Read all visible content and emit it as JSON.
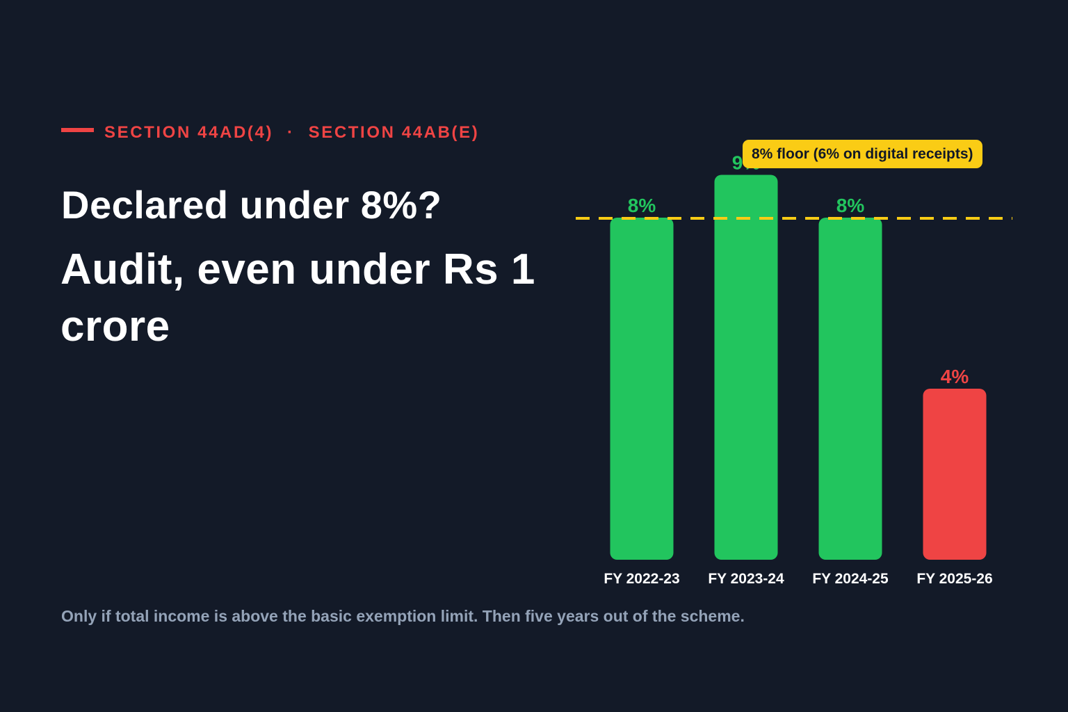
{
  "eyebrow": {
    "left": "SECTION 44AD(4)",
    "separator": "·",
    "right": "SECTION 44AB(E)"
  },
  "headline": "Declared under 8%?",
  "subhead": "Audit, even under Rs 1 crore",
  "footnote": "Only if total income is above the basic exemption limit. Then five years out of the scheme.",
  "colors": {
    "background": "#131a28",
    "accent_red": "#ef4444",
    "bar_green": "#22c55e",
    "reference_yellow": "#facc15",
    "muted_text": "#94a3b8"
  },
  "chart_data": {
    "type": "bar",
    "categories": [
      "FY 2022-23",
      "FY 2023-24",
      "FY 2024-25",
      "FY 2025-26"
    ],
    "values": [
      8,
      9,
      8,
      4
    ],
    "data_labels": [
      "8%",
      "9%",
      "8%",
      "4%"
    ],
    "bar_colors": [
      "#22c55e",
      "#22c55e",
      "#22c55e",
      "#ef4444"
    ],
    "reference_line": {
      "value": 8,
      "label": "8% floor (6% on digital receipts)",
      "style": "dashed",
      "color": "#facc15"
    },
    "ylim": [
      0,
      9
    ],
    "title": "",
    "xlabel": "",
    "ylabel": "",
    "grid": false,
    "legend": "none"
  }
}
